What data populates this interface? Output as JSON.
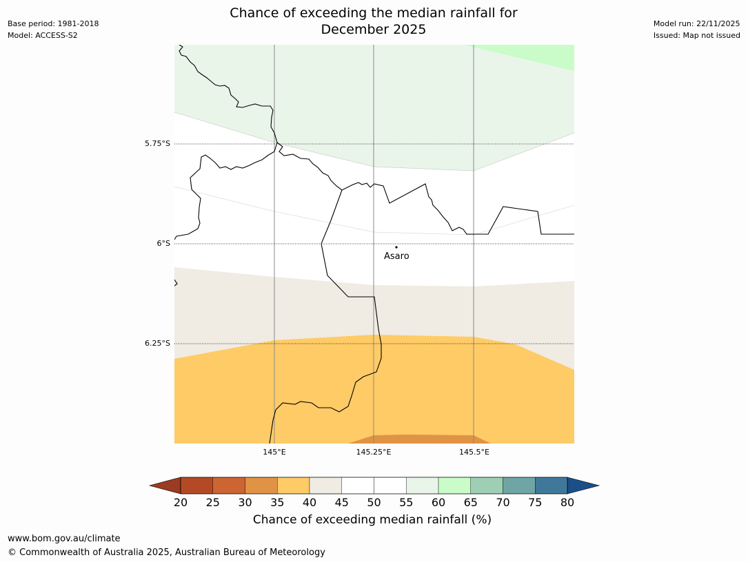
{
  "title_line1": "Chance of exceeding the median rainfall for",
  "title_line2": "December 2025",
  "meta_left": [
    "Base period: 1981-2018",
    "Model: ACCESS-S2"
  ],
  "meta_right": [
    "Model run: 22/11/2025",
    "Issued: Map not issued"
  ],
  "lat_labels": [
    "5.75°S",
    "6°S",
    "6.25°S"
  ],
  "lon_labels": [
    "145°E",
    "145.25°E",
    "145.5°E"
  ],
  "place": {
    "name": "Asaro"
  },
  "colorbar": {
    "ticks": [
      "20",
      "25",
      "30",
      "35",
      "40",
      "45",
      "50",
      "55",
      "60",
      "65",
      "70",
      "75",
      "80"
    ],
    "colors": {
      "below20": "#9a3b22",
      "bins": [
        "#b34a25",
        "#cc6531",
        "#e09345",
        "#fecb66",
        "#f0ebe3",
        "#ffffff",
        "#ffffff",
        "#eaf5ea",
        "#c9fcc8",
        "#9ecfb5",
        "#6fa5a5",
        "#40789a"
      ],
      "above80": "#1b4f88"
    },
    "label": "Chance of exceeding median rainfall (%)"
  },
  "footer": [
    "www.bom.gov.au/climate",
    "© Commonwealth of Australia 2025, Australian Bureau of Meteorology"
  ]
}
